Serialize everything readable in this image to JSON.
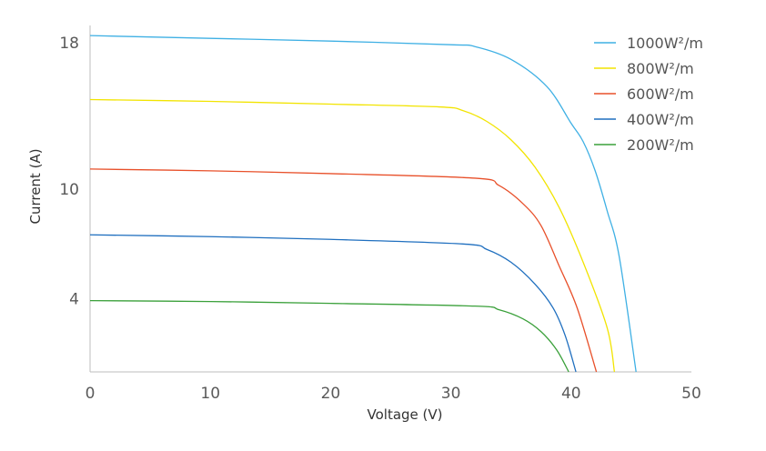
{
  "chart_data": {
    "type": "line",
    "title": "",
    "xlabel": "Voltage (V)",
    "ylabel": "Current (A)",
    "xlim": [
      0,
      50
    ],
    "ylim": [
      0,
      18.4
    ],
    "xticks": [
      "0",
      "10",
      "20",
      "30",
      "40",
      "50"
    ],
    "xtick_values": [
      0,
      10,
      20,
      30,
      40,
      50
    ],
    "yticks": [
      "4",
      "10",
      "18"
    ],
    "ytick_values": [
      4,
      10,
      18
    ],
    "grid": false,
    "legend_position": "top-right",
    "series": [
      {
        "name": "1000W²/m",
        "color": "#3fb0e4",
        "points": [
          [
            0,
            18.4
          ],
          [
            10,
            18.25
          ],
          [
            20,
            18.1
          ],
          [
            30,
            17.9
          ],
          [
            32,
            17.8
          ],
          [
            35,
            17.1
          ],
          [
            38,
            15.6
          ],
          [
            40,
            13.6
          ],
          [
            41,
            12.6
          ],
          [
            42,
            11
          ],
          [
            43,
            8.8
          ],
          [
            44,
            6.3
          ],
          [
            45.4,
            0
          ]
        ]
      },
      {
        "name": "800W²/m",
        "color": "#f2e400",
        "points": [
          [
            0,
            14.9
          ],
          [
            10,
            14.8
          ],
          [
            20,
            14.65
          ],
          [
            29,
            14.5
          ],
          [
            31,
            14.3
          ],
          [
            33,
            13.7
          ],
          [
            35,
            12.7
          ],
          [
            37,
            11.2
          ],
          [
            39,
            9
          ],
          [
            41,
            6
          ],
          [
            43,
            2.4
          ],
          [
            43.6,
            0
          ]
        ]
      },
      {
        "name": "600W²/m",
        "color": "#e8502a",
        "points": [
          [
            0,
            11.1
          ],
          [
            10,
            11.0
          ],
          [
            20,
            10.85
          ],
          [
            32,
            10.6
          ],
          [
            34,
            10.2
          ],
          [
            36,
            9.2
          ],
          [
            37.5,
            8
          ],
          [
            39,
            5.8
          ],
          [
            40.5,
            3.5
          ],
          [
            42.1,
            0
          ]
        ]
      },
      {
        "name": "400W²/m",
        "color": "#1f6fbf",
        "points": [
          [
            0,
            7.5
          ],
          [
            10,
            7.4
          ],
          [
            20,
            7.25
          ],
          [
            31,
            7.0
          ],
          [
            33,
            6.7
          ],
          [
            35,
            6.0
          ],
          [
            37,
            4.8
          ],
          [
            38.5,
            3.5
          ],
          [
            39.5,
            2
          ],
          [
            40.4,
            0
          ]
        ]
      },
      {
        "name": "200W²/m",
        "color": "#3aa03a",
        "points": [
          [
            0,
            3.9
          ],
          [
            10,
            3.85
          ],
          [
            20,
            3.75
          ],
          [
            32,
            3.6
          ],
          [
            34,
            3.4
          ],
          [
            36,
            2.9
          ],
          [
            37.5,
            2.2
          ],
          [
            38.8,
            1.2
          ],
          [
            39.8,
            0
          ]
        ]
      }
    ]
  }
}
